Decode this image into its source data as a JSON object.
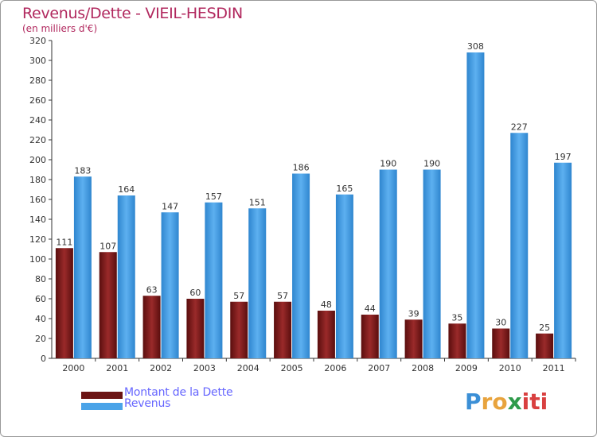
{
  "chart_data": {
    "type": "bar",
    "title": "Revenus/Dette - VIEIL-HESDIN",
    "subtitle": "(en milliers d'€)",
    "xlabel": "",
    "ylabel": "",
    "ylim": [
      0,
      320
    ],
    "yticks": [
      "0",
      "20",
      "40",
      "60",
      "80",
      "100",
      "120",
      "140",
      "160",
      "180",
      "200",
      "220",
      "240",
      "260",
      "280",
      "300",
      "320"
    ],
    "categories": [
      "2000",
      "2001",
      "2002",
      "2003",
      "2004",
      "2005",
      "2006",
      "2007",
      "2008",
      "2009",
      "2010",
      "2011"
    ],
    "grid": false,
    "legend_position": "bottom-left",
    "series": [
      {
        "name": "Montant de la Dette",
        "color": "#7a1a1a",
        "values": [
          111,
          107,
          63,
          60,
          57,
          57,
          48,
          44,
          39,
          35,
          30,
          25
        ],
        "labels": [
          "111",
          "107",
          "63",
          "60",
          "57",
          "57",
          "48",
          "44",
          "39",
          "35",
          "30",
          "25"
        ]
      },
      {
        "name": "Revenus",
        "color": "#4aa3e8",
        "values": [
          183,
          164,
          147,
          157,
          151,
          186,
          165,
          190,
          190,
          308,
          227,
          197
        ],
        "labels": [
          "183",
          "164",
          "147",
          "157",
          "151",
          "186",
          "165",
          "190",
          "190",
          "308",
          "227",
          "197"
        ]
      }
    ]
  },
  "logo": {
    "letters": [
      "P",
      "r",
      "o",
      "x",
      "i",
      "t",
      "i"
    ],
    "colors": [
      "#3b8fd6",
      "#e8a33d",
      "#e8a33d",
      "#2e9a4a",
      "#d94040",
      "#d94040",
      "#d94040"
    ]
  }
}
